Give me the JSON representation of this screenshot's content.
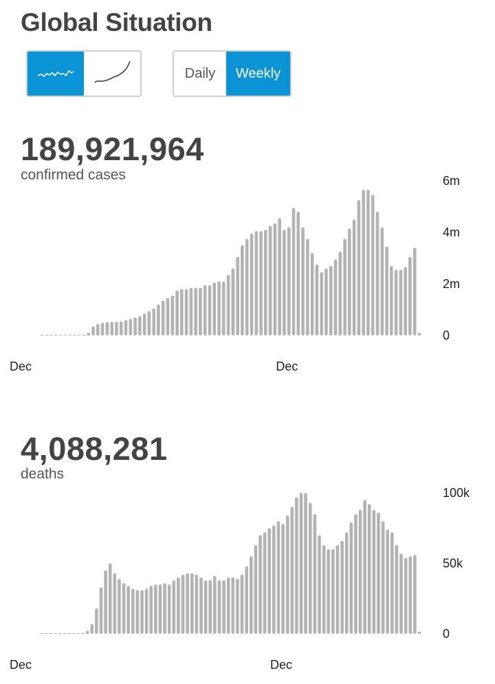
{
  "header": {
    "title": "Global Situation"
  },
  "scale_toggle": {
    "options": [
      {
        "icon": "linear-scale-icon"
      },
      {
        "icon": "log-scale-icon"
      }
    ],
    "selected": 0,
    "color_active": "#0a94d6"
  },
  "frequency_toggle": {
    "daily_label": "Daily",
    "weekly_label": "Weekly",
    "selected": "Weekly"
  },
  "cases": {
    "total": "189,921,964",
    "label": "confirmed cases"
  },
  "deaths": {
    "total": "4,088,281",
    "label": "deaths"
  },
  "chart_data": [
    {
      "type": "bar",
      "title": "confirmed cases",
      "bar_color": "#b3b3b3",
      "ylim": [
        0,
        6000000
      ],
      "yticks": [
        0,
        2000000,
        4000000,
        6000000
      ],
      "ytick_labels": [
        "0",
        "2m",
        "4m",
        "6m"
      ],
      "xtick_labels": [
        {
          "index": 0,
          "label": "Dec"
        },
        {
          "index": 52,
          "label": "Dec"
        }
      ],
      "values": [
        0,
        0,
        0,
        5000,
        10000,
        10000,
        20000,
        20000,
        20000,
        30000,
        100000,
        350000,
        450000,
        500000,
        520000,
        530000,
        530000,
        550000,
        600000,
        650000,
        700000,
        750000,
        850000,
        950000,
        1050000,
        1200000,
        1350000,
        1450000,
        1550000,
        1750000,
        1800000,
        1800000,
        1850000,
        1850000,
        1850000,
        1950000,
        1950000,
        2050000,
        2100000,
        2100000,
        2350000,
        2600000,
        3050000,
        3500000,
        3750000,
        3950000,
        4050000,
        4050000,
        4100000,
        4250000,
        4350000,
        4550000,
        4100000,
        4200000,
        4950000,
        4800000,
        4200000,
        3750000,
        3200000,
        2750000,
        2450000,
        2600000,
        2700000,
        2950000,
        3250000,
        3750000,
        4150000,
        4500000,
        5250000,
        5650000,
        5650000,
        5450000,
        4800000,
        4200000,
        3450000,
        2700000,
        2550000,
        2550000,
        2650000,
        3050000,
        3400000,
        100000
      ]
    },
    {
      "type": "bar",
      "title": "deaths",
      "bar_color": "#b3b3b3",
      "ylim": [
        0,
        100000
      ],
      "yticks": [
        0,
        50000,
        100000
      ],
      "ytick_labels": [
        "0",
        "50k",
        "100k"
      ],
      "xtick_labels": [
        {
          "index": 0,
          "label": "Dec"
        },
        {
          "index": 52,
          "label": "Dec"
        }
      ],
      "values": [
        0,
        0,
        0,
        300,
        300,
        300,
        400,
        400,
        400,
        600,
        2000,
        7000,
        18000,
        33000,
        45000,
        50000,
        43000,
        39000,
        36000,
        34000,
        32000,
        31000,
        31000,
        32000,
        34000,
        35000,
        35000,
        36000,
        35000,
        38000,
        40000,
        42000,
        43000,
        43000,
        42000,
        40000,
        38000,
        38000,
        41000,
        38000,
        38000,
        40000,
        40000,
        39000,
        42000,
        48000,
        55000,
        63000,
        70000,
        72000,
        75000,
        77000,
        80000,
        78000,
        84000,
        90000,
        97000,
        100000,
        100000,
        93000,
        85000,
        70000,
        63000,
        60000,
        60000,
        63000,
        66000,
        72000,
        79000,
        85000,
        88000,
        95000,
        92000,
        88000,
        86000,
        80000,
        74000,
        72000,
        63000,
        57000,
        54000,
        55000,
        56000,
        1500
      ]
    }
  ]
}
